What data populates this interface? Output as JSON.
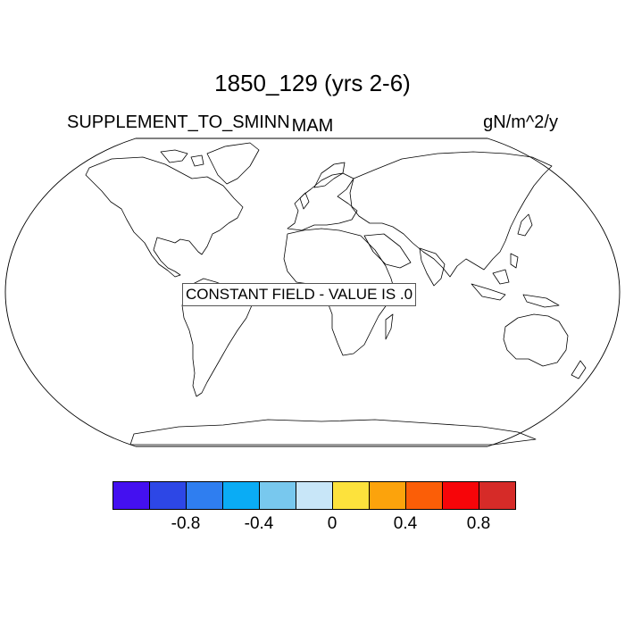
{
  "header": {
    "title": "1850_129 (yrs 2-6)",
    "variable": "SUPPLEMENT_TO_SMINN",
    "season": "MAM",
    "units": "gN/m^2/y"
  },
  "map": {
    "notice": "CONSTANT FIELD - VALUE IS .0"
  },
  "colorbar": {
    "colors": [
      "#4410f0",
      "#2d47e6",
      "#2f7ef0",
      "#0aacf5",
      "#78c8ee",
      "#c8e6f8",
      "#fde23c",
      "#fca30c",
      "#fb5e07",
      "#f70509",
      "#d62b28"
    ],
    "tick_labels": [
      "-0.8",
      "-0.4",
      "0",
      "0.4",
      "0.8"
    ]
  }
}
